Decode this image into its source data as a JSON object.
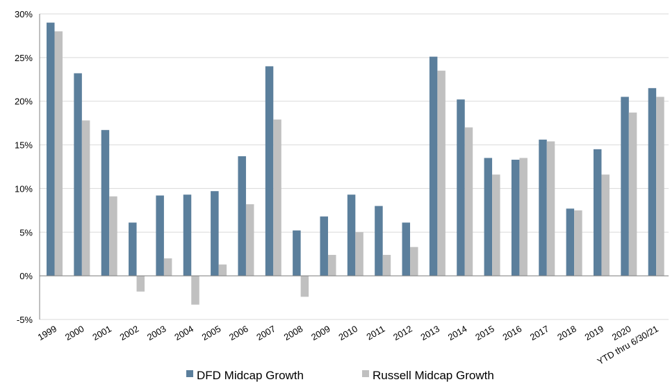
{
  "chart_data": {
    "type": "bar",
    "categories": [
      "1999",
      "2000",
      "2001",
      "2002",
      "2003",
      "2004",
      "2005",
      "2006",
      "2007",
      "2008",
      "2009",
      "2010",
      "2011",
      "2012",
      "2013",
      "2014",
      "2015",
      "2016",
      "2017",
      "2018",
      "2019",
      "2020",
      "YTD thru 6/30/21"
    ],
    "series": [
      {
        "name": "DFD Midcap Growth",
        "color": "#5b7f9c",
        "values": [
          29.0,
          23.2,
          16.7,
          6.1,
          9.2,
          9.3,
          9.7,
          13.7,
          24.0,
          5.2,
          6.8,
          9.3,
          8.0,
          6.1,
          25.1,
          20.2,
          13.5,
          13.3,
          15.6,
          7.7,
          14.5,
          20.5,
          21.5
        ]
      },
      {
        "name": "Russell Midcap Growth",
        "color": "#c0c0c0",
        "values": [
          28.0,
          17.8,
          9.1,
          -1.8,
          2.0,
          -3.3,
          1.3,
          8.2,
          17.9,
          -2.4,
          2.4,
          5.0,
          2.4,
          3.3,
          23.5,
          17.0,
          11.6,
          13.5,
          15.4,
          7.5,
          11.6,
          18.7,
          20.5
        ]
      }
    ],
    "y_ticks": [
      "-5%",
      "0%",
      "5%",
      "10%",
      "15%",
      "20%",
      "25%",
      "30%"
    ],
    "y_tick_values": [
      -5,
      0,
      5,
      10,
      15,
      20,
      25,
      30
    ],
    "ylim": [
      -5,
      30
    ],
    "grid": true,
    "legend": "bottom"
  }
}
